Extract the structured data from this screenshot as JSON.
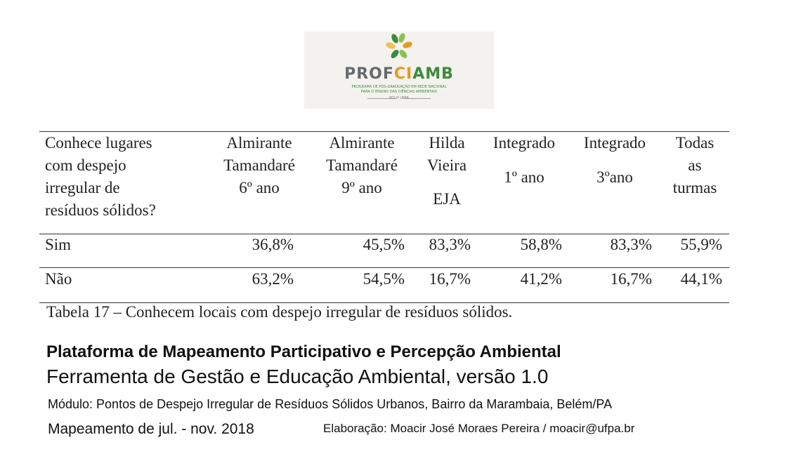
{
  "logo": {
    "part1": "PROF",
    "part2": "CI",
    "part3": "AMB",
    "line1": "PROGRAMA DE PÓS-GRADUAÇÃO EM REDE NACIONAL",
    "line2": "PARA O ENSINO DAS CIÊNCIAS AMBIENTAIS",
    "line3": "POLO UFPA",
    "colors": {
      "gray": "#666a6e",
      "orange": "#e8991e",
      "green": "#3d8b3a"
    }
  },
  "table": {
    "question": [
      "Conhece lugares",
      "com despejo",
      "irregular de",
      "resíduos sólidos?"
    ],
    "columns": [
      {
        "lines": [
          "Almirante",
          "Tamandaré",
          "6º ano"
        ]
      },
      {
        "lines": [
          "Almirante",
          "Tamandaré",
          "9º ano"
        ]
      },
      {
        "lines": [
          "Hilda",
          "Vieira",
          "EJA"
        ]
      },
      {
        "lines": [
          "Integrado",
          "1º ano"
        ]
      },
      {
        "lines": [
          "Integrado",
          "3ºano"
        ]
      },
      {
        "lines": [
          "Todas",
          "as",
          "turmas"
        ]
      }
    ],
    "rows": [
      {
        "label": "Sim",
        "values": [
          "36,8%",
          "45,5%",
          "83,3%",
          "58,8%",
          "83,3%",
          "55,9%"
        ]
      },
      {
        "label": "Não",
        "values": [
          "63,2%",
          "54,5%",
          "16,7%",
          "41,2%",
          "16,7%",
          "44,1%"
        ]
      }
    ],
    "caption": "Tabela 17 – Conhecem locais com despejo irregular de resíduos sólidos."
  },
  "footer": {
    "title": "Plataforma de Mapeamento Participativo e Percepção Ambiental",
    "subtitle": "Ferramenta de Gestão e Educação Ambiental, versão 1.0",
    "module": "Módulo: Pontos de Despejo Irregular de Resíduos Sólidos Urbanos, Bairro da Marambaia, Belém/PA",
    "period": "Mapeamento de jul. - nov. 2018",
    "author": "Elaboração: Moacir José Moraes Pereira / moacir@ufpa.br"
  }
}
